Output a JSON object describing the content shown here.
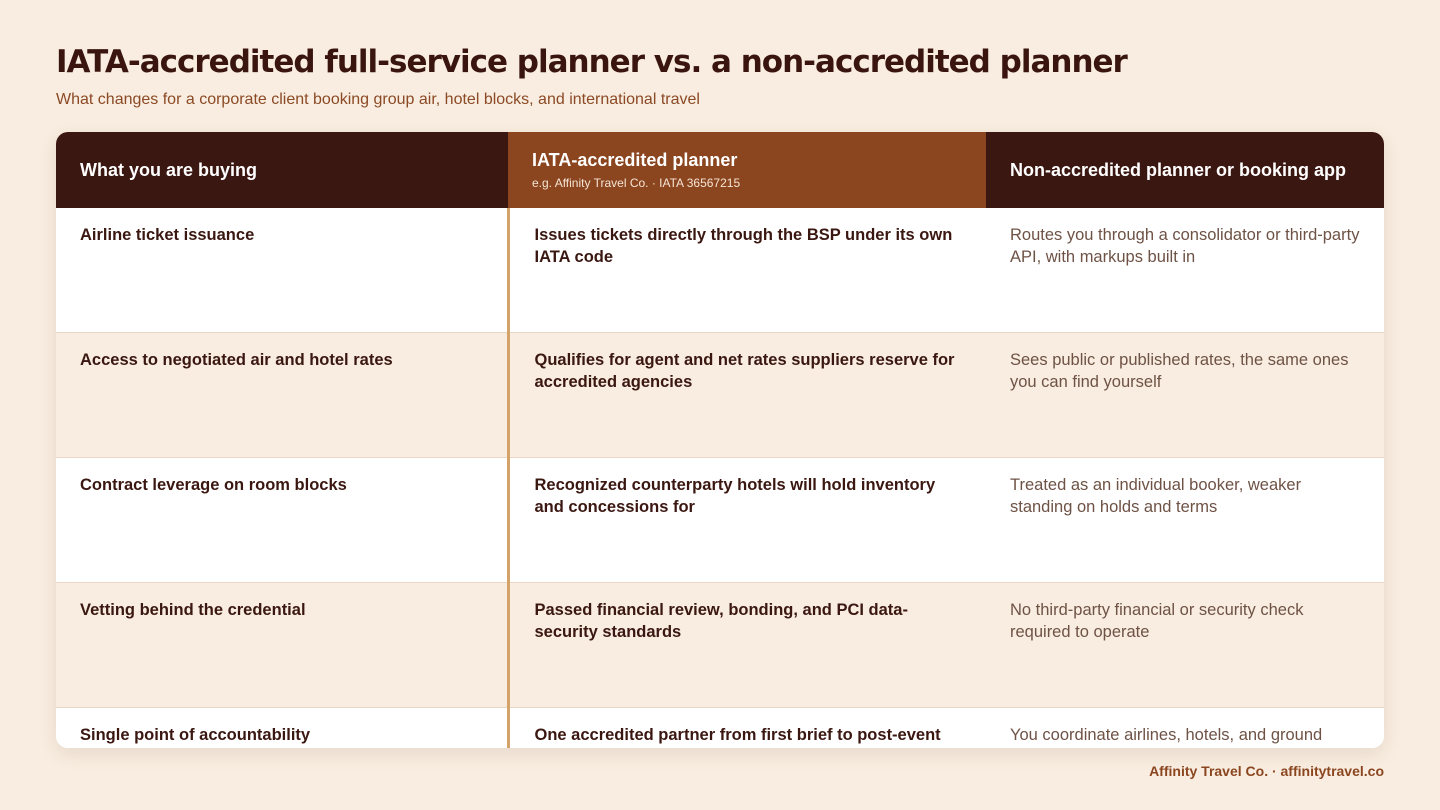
{
  "header": {
    "title": "IATA-accredited full-service planner vs. a non-accredited planner",
    "subtitle": "What changes for a corporate client booking group air, hotel blocks, and international travel"
  },
  "table": {
    "columns": {
      "buying": "What you are buying",
      "accredited": "IATA-accredited planner",
      "accredited_note": "e.g. Affinity Travel Co. · IATA 36567215",
      "non_accredited": "Non-accredited planner or booking app"
    },
    "rows": [
      {
        "label": "Airline ticket issuance",
        "accredited": "Issues tickets directly through the BSP under its own IATA code",
        "non_accredited": "Routes you through a consolidator or third-party API, with markups built in"
      },
      {
        "label": "Access to negotiated air and hotel rates",
        "accredited": "Qualifies for agent and net rates suppliers reserve for accredited agencies",
        "non_accredited": "Sees public or published rates, the same ones you can find yourself"
      },
      {
        "label": "Contract leverage on room blocks",
        "accredited": "Recognized counterparty hotels will hold inventory and concessions for",
        "non_accredited": "Treated as an individual booker, weaker standing on holds and terms"
      },
      {
        "label": "Vetting behind the credential",
        "accredited": "Passed financial review, bonding, and PCI data-security standards",
        "non_accredited": "No third-party financial or security check required to operate"
      },
      {
        "label": "Single point of accountability",
        "accredited": "One accredited partner from first brief to post-event debrief",
        "non_accredited": "You coordinate airlines, hotels, and ground transport yourself"
      }
    ]
  },
  "footer": {
    "credit": "Affinity Travel Co. · affinitytravel.co"
  }
}
